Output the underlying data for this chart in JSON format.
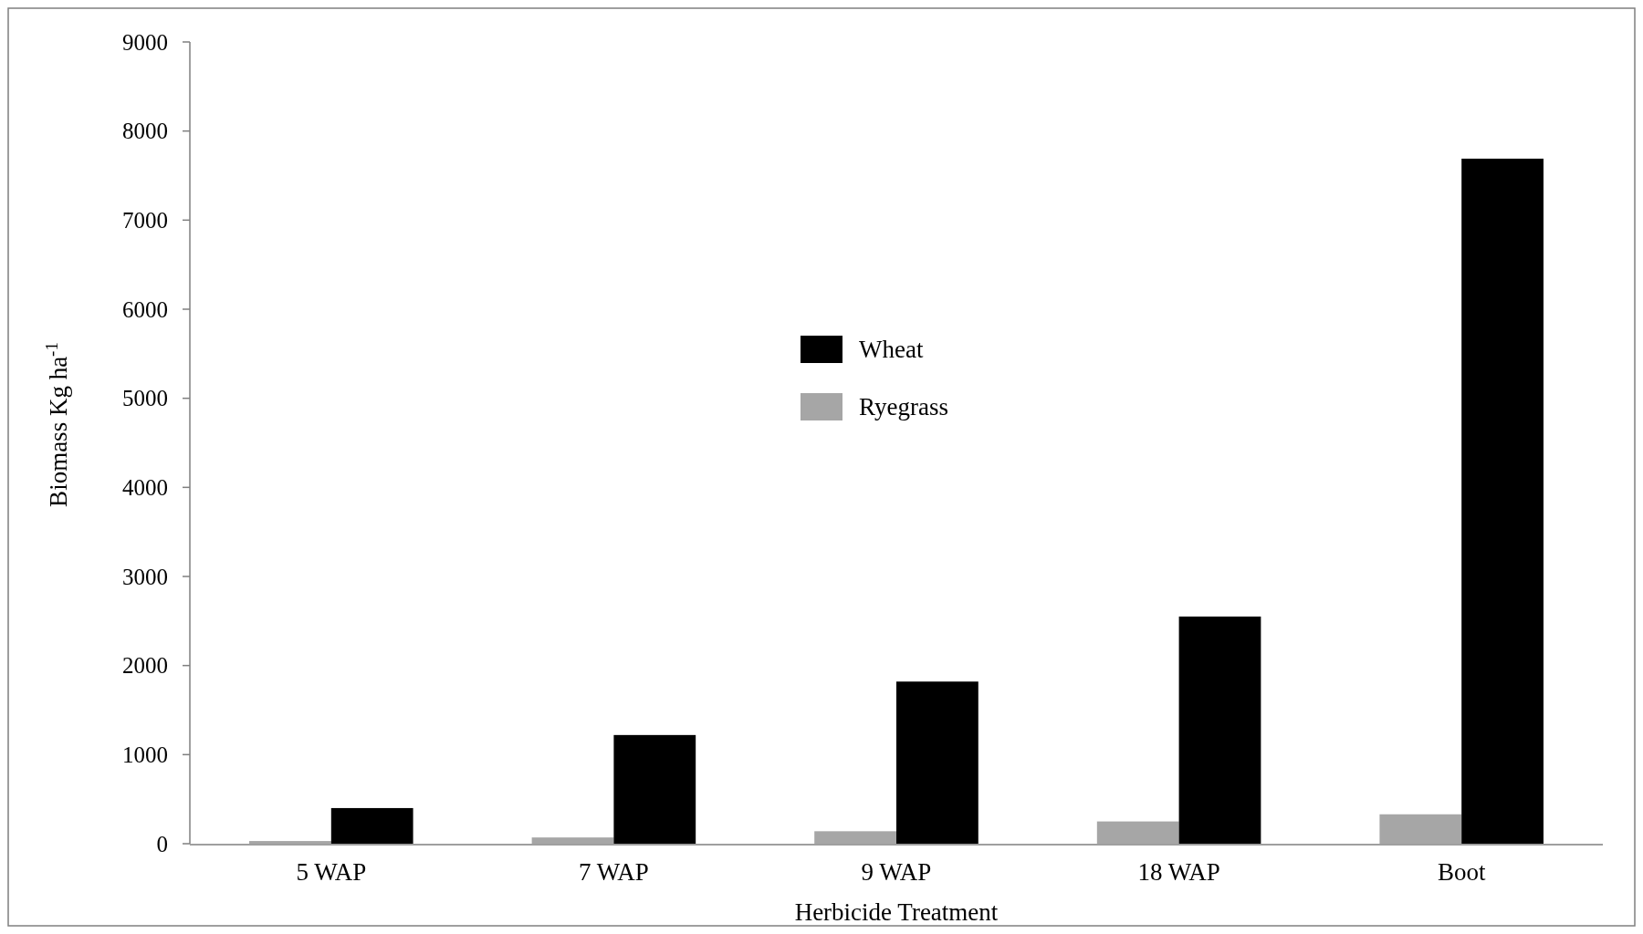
{
  "chart_data": {
    "type": "bar",
    "xlabel": "Herbicide Treatment",
    "ylabel": "Biomass Kg ha$^{-1}$",
    "categories": [
      "5 WAP",
      "7 WAP",
      "9 WAP",
      "18 WAP",
      "Boot"
    ],
    "series": [
      {
        "name": "Ryegrass",
        "color": "#a6a6a6",
        "values": [
          30,
          70,
          140,
          250,
          330
        ]
      },
      {
        "name": "Wheat",
        "color": "#000000",
        "values": [
          400,
          1220,
          1820,
          2550,
          7690
        ]
      }
    ],
    "ylim": [
      0,
      9000
    ],
    "yticks": [
      0,
      1000,
      2000,
      3000,
      4000,
      5000,
      6000,
      7000,
      8000,
      9000
    ],
    "grid": false,
    "legend": "center"
  }
}
